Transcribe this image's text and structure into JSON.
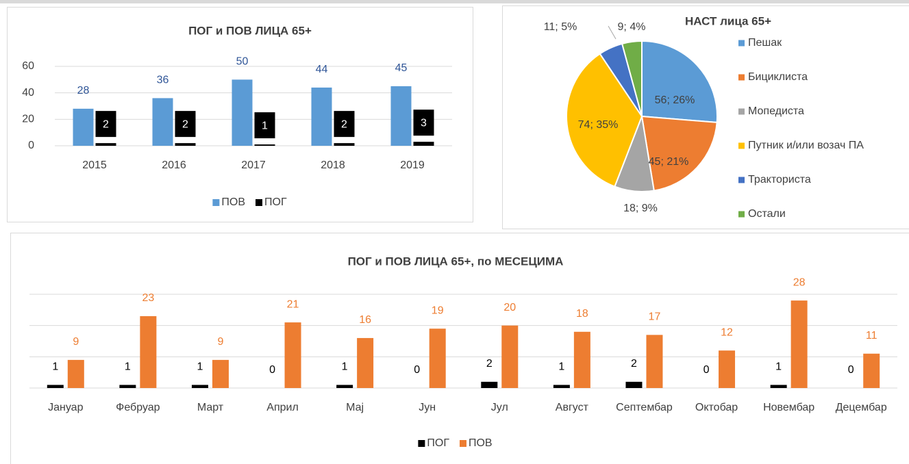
{
  "chart_data": [
    {
      "type": "bar",
      "title": "ПОГ и ПОВ ЛИЦА 65+",
      "categories": [
        "2015",
        "2016",
        "2017",
        "2018",
        "2019"
      ],
      "series": [
        {
          "name": "ПОВ",
          "color": "#5b9bd5",
          "values": [
            28,
            36,
            50,
            44,
            45
          ]
        },
        {
          "name": "ПОГ",
          "color": "#000000",
          "values": [
            2,
            2,
            1,
            2,
            3
          ]
        }
      ],
      "ylim": [
        0,
        60
      ],
      "yticks": [
        0,
        20,
        40,
        60
      ],
      "grid": true,
      "legend": "bottom"
    },
    {
      "type": "pie",
      "title": "НАСТ лица 65+",
      "categories": [
        "Пешак",
        "Бициклиста",
        "Мопедиста",
        "Путник и/или возач ПА",
        "Тракториста",
        "Остали"
      ],
      "values": [
        56,
        45,
        18,
        74,
        11,
        9
      ],
      "value_labels": [
        "56; 26%",
        "45; 21%",
        "18; 9%",
        "74; 35%",
        "11; 5%",
        "9; 4%"
      ],
      "colors": [
        "#5b9bd5",
        "#ed7d31",
        "#a5a5a5",
        "#ffc000",
        "#4472c4",
        "#70ad47"
      ],
      "legend": "right"
    },
    {
      "type": "bar",
      "title": "ПОГ и ПОВ ЛИЦА 65+, по МЕСЕЦИМА",
      "categories": [
        "Јануар",
        "Фебруар",
        "Март",
        "Април",
        "Мај",
        "Јун",
        "Јул",
        "Август",
        "Септембар",
        "Октобар",
        "Новембар",
        "Децембар"
      ],
      "series": [
        {
          "name": "ПОГ",
          "color": "#000000",
          "values": [
            1,
            1,
            1,
            0,
            1,
            0,
            2,
            1,
            2,
            0,
            1,
            0
          ]
        },
        {
          "name": "ПОВ",
          "color": "#ed7d31",
          "values": [
            9,
            23,
            9,
            21,
            16,
            19,
            20,
            18,
            17,
            12,
            28,
            11
          ]
        }
      ],
      "ylim": [
        0,
        30
      ],
      "yticks": [
        0,
        10,
        20,
        30
      ],
      "grid": true,
      "legend": "bottom"
    }
  ]
}
